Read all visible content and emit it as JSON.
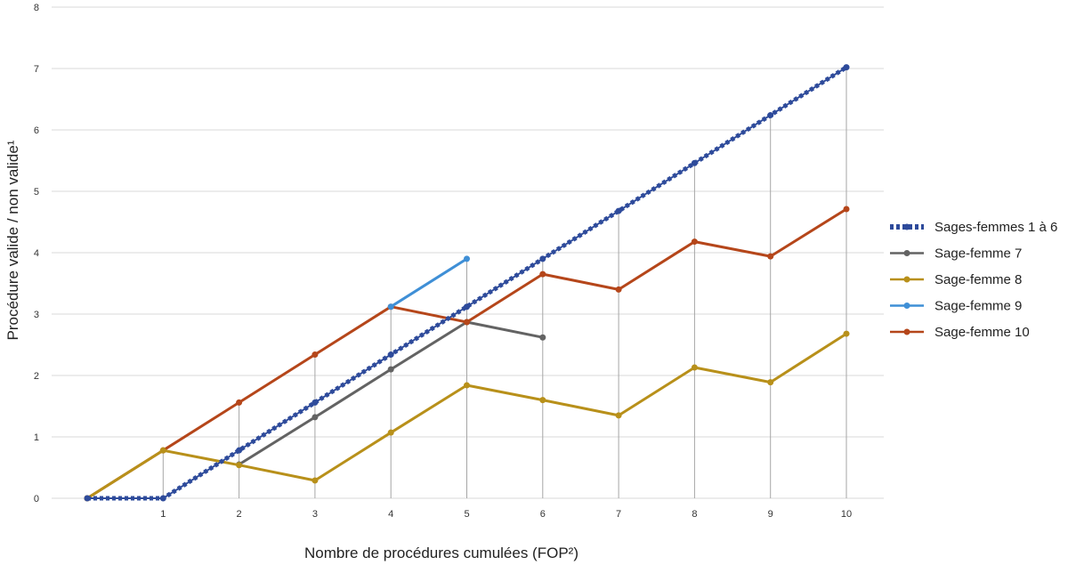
{
  "chart_data": {
    "type": "line",
    "xlabel": "Nombre de procédures cumulées (FOP²)",
    "ylabel": "Procédure valide / non valide¹",
    "xlim": [
      0,
      10
    ],
    "ylim": [
      0,
      8
    ],
    "x_ticks": [
      1,
      2,
      3,
      4,
      5,
      6,
      7,
      8,
      9,
      10
    ],
    "y_ticks": [
      0,
      1,
      2,
      3,
      4,
      5,
      6,
      7,
      8
    ],
    "grid": "horizontal major gridlines, vertical drop lines at points",
    "legend_position": "right",
    "series": [
      {
        "name": "Sages-femmes 1 à 6",
        "color": "#2e4b9b",
        "style": "dashed-thick",
        "x": [
          0,
          1,
          2,
          3,
          4,
          5,
          6,
          7,
          8,
          9,
          10
        ],
        "y": [
          0,
          0,
          0.78,
          1.56,
          2.34,
          3.12,
          3.9,
          4.68,
          5.46,
          6.24,
          7.02
        ]
      },
      {
        "name": "Sage-femme 7",
        "color": "#636363",
        "style": "solid",
        "x": [
          2,
          3,
          4,
          5,
          6
        ],
        "y": [
          0.55,
          1.32,
          2.1,
          2.87,
          2.62
        ]
      },
      {
        "name": "Sage-femme 8",
        "color": "#b8901a",
        "style": "solid",
        "x": [
          0,
          1,
          2,
          3,
          4,
          5,
          6,
          7,
          8,
          9,
          10
        ],
        "y": [
          0,
          0.78,
          0.54,
          0.29,
          1.07,
          1.84,
          1.6,
          1.35,
          2.13,
          1.89,
          2.68
        ]
      },
      {
        "name": "Sage-femme 9",
        "color": "#3f8fd6",
        "style": "solid",
        "x": [
          4,
          5
        ],
        "y": [
          3.12,
          3.9
        ]
      },
      {
        "name": "Sage-femme 10",
        "color": "#b5461a",
        "style": "solid",
        "x": [
          0,
          1,
          2,
          3,
          4,
          5,
          6,
          7,
          8,
          9,
          10
        ],
        "y": [
          0,
          0.78,
          1.56,
          2.34,
          3.12,
          2.87,
          3.65,
          3.4,
          4.18,
          3.94,
          4.71
        ]
      }
    ]
  }
}
